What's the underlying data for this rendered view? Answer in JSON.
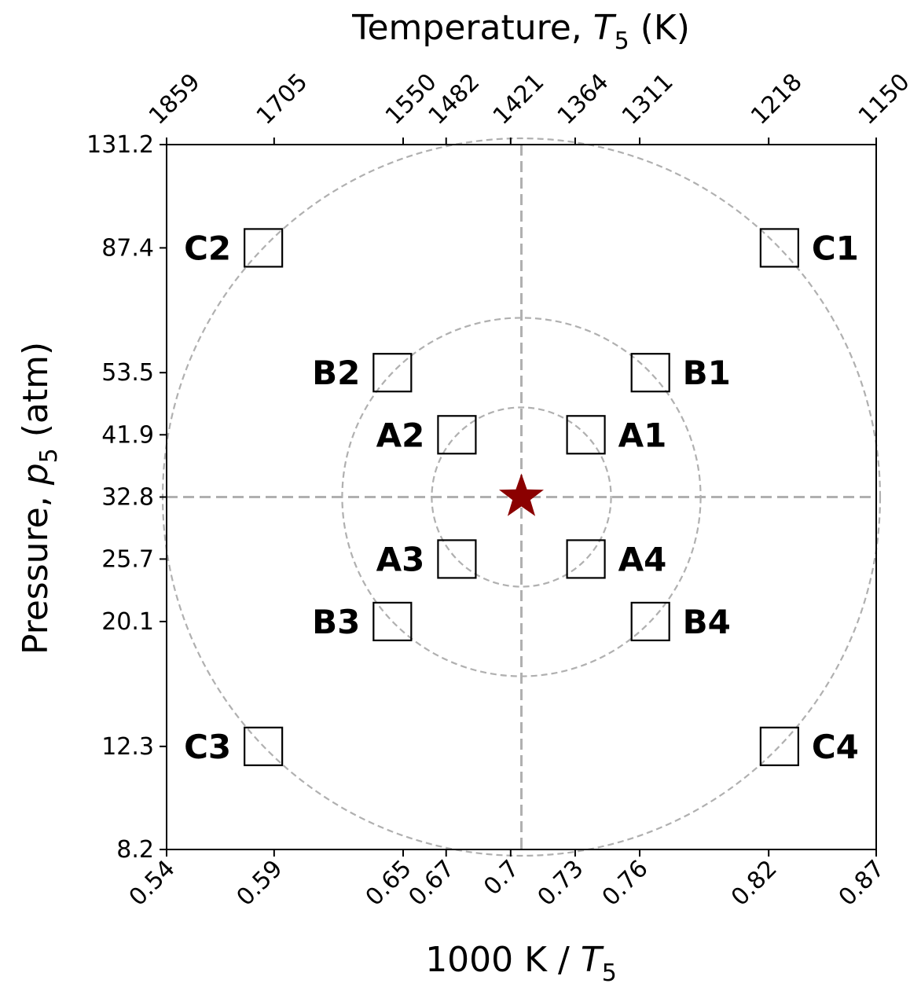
{
  "chart_data": {
    "type": "scatter",
    "top_axis": {
      "label": "Temperature, ",
      "label_var": "T",
      "label_sub": "5",
      "label_unit": " (K)",
      "ticks": [
        {
          "x": 0.54,
          "label": "1859"
        },
        {
          "x": 0.59,
          "label": "1705"
        },
        {
          "x": 0.65,
          "label": "1550"
        },
        {
          "x": 0.67,
          "label": "1482"
        },
        {
          "x": 0.7,
          "label": "1421"
        },
        {
          "x": 0.73,
          "label": "1364"
        },
        {
          "x": 0.76,
          "label": "1311"
        },
        {
          "x": 0.82,
          "label": "1218"
        },
        {
          "x": 0.87,
          "label": "1150"
        }
      ]
    },
    "x_axis": {
      "label_prefix": "1000 K / ",
      "label_var": "T",
      "label_sub": "5",
      "ticks": [
        {
          "x": 0.54,
          "label": "0.54"
        },
        {
          "x": 0.59,
          "label": "0.59"
        },
        {
          "x": 0.65,
          "label": "0.65"
        },
        {
          "x": 0.67,
          "label": "0.67"
        },
        {
          "x": 0.7,
          "label": "0.7"
        },
        {
          "x": 0.73,
          "label": "0.73"
        },
        {
          "x": 0.76,
          "label": "0.76"
        },
        {
          "x": 0.82,
          "label": "0.82"
        },
        {
          "x": 0.87,
          "label": "0.87"
        }
      ],
      "xlim": [
        0.54,
        0.87
      ]
    },
    "y_axis": {
      "label_prefix": "Pressure, ",
      "label_var": "p",
      "label_sub": "5",
      "label_unit": " (atm)",
      "scale": "log",
      "ticks": [
        {
          "y": 8.2,
          "label": "8.2"
        },
        {
          "y": 12.3,
          "label": "12.3"
        },
        {
          "y": 20.1,
          "label": "20.1"
        },
        {
          "y": 25.7,
          "label": "25.7"
        },
        {
          "y": 32.8,
          "label": "32.8"
        },
        {
          "y": 41.9,
          "label": "41.9"
        },
        {
          "y": 53.5,
          "label": "53.5"
        },
        {
          "y": 87.4,
          "label": "87.4"
        },
        {
          "y": 131.2,
          "label": "131.2"
        }
      ],
      "ylim": [
        8.2,
        131.2
      ]
    },
    "center": {
      "x": 0.705,
      "y": 32.8,
      "marker": "star",
      "color": "#8b0000"
    },
    "points": [
      {
        "label": "A1",
        "x": 0.735,
        "y": 41.9,
        "label_side": "right"
      },
      {
        "label": "A2",
        "x": 0.675,
        "y": 41.9,
        "label_side": "left"
      },
      {
        "label": "A3",
        "x": 0.675,
        "y": 25.7,
        "label_side": "left"
      },
      {
        "label": "A4",
        "x": 0.735,
        "y": 25.7,
        "label_side": "right"
      },
      {
        "label": "B1",
        "x": 0.765,
        "y": 53.5,
        "label_side": "right"
      },
      {
        "label": "B2",
        "x": 0.645,
        "y": 53.5,
        "label_side": "left"
      },
      {
        "label": "B3",
        "x": 0.645,
        "y": 20.1,
        "label_side": "left"
      },
      {
        "label": "B4",
        "x": 0.765,
        "y": 20.1,
        "label_side": "right"
      },
      {
        "label": "C1",
        "x": 0.825,
        "y": 87.4,
        "label_side": "right"
      },
      {
        "label": "C2",
        "x": 0.585,
        "y": 87.4,
        "label_side": "left"
      },
      {
        "label": "C3",
        "x": 0.585,
        "y": 12.3,
        "label_side": "left"
      },
      {
        "label": "C4",
        "x": 0.825,
        "y": 12.3,
        "label_side": "right"
      }
    ],
    "circles": [
      {
        "name": "A",
        "through": "A1"
      },
      {
        "name": "B",
        "through": "B1"
      },
      {
        "name": "C",
        "through": "C1"
      }
    ],
    "colors": {
      "guides": "#b0b0b0",
      "markers": "#000000",
      "star": "#8b0000"
    },
    "grid": false
  }
}
